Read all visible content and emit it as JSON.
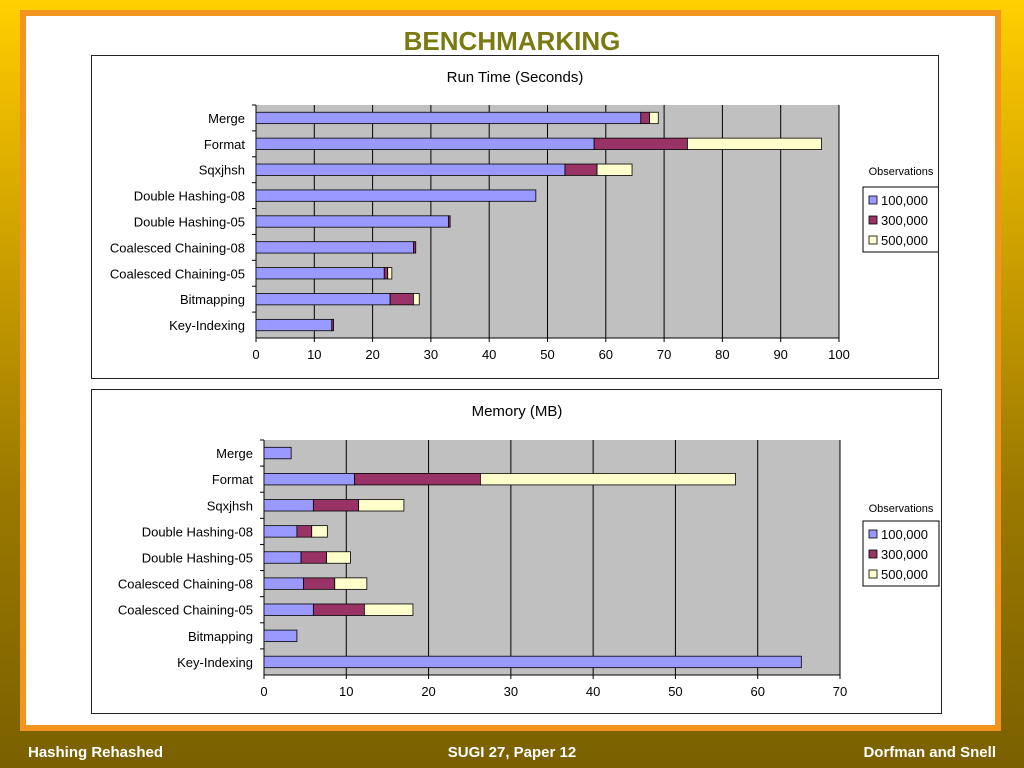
{
  "slide": {
    "title": "BENCHMARKING",
    "footer_left": "Hashing Rehashed",
    "footer_center": "SUGI 27, Paper 12",
    "footer_right": "Dorfman and Snell"
  },
  "colors": {
    "series_100k": "#9999ff",
    "series_300k": "#993366",
    "series_500k": "#ffffcc",
    "plot_bg": "#c0c0c0",
    "frame": "#f39320",
    "title": "#7a7a12"
  },
  "chart_data": [
    {
      "type": "bar",
      "orientation": "horizontal",
      "stacked": true,
      "title": "Run Time (Seconds)",
      "categories": [
        "Merge",
        "Format",
        "Sqxjhsh",
        "Double Hashing-08",
        "Double Hashing-05",
        "Coalesced Chaining-08",
        "Coalesced Chaining-05",
        "Bitmapping",
        "Key-Indexing"
      ],
      "series": [
        {
          "name": "100,000",
          "values": [
            66,
            58,
            53,
            48,
            33,
            27,
            22,
            23,
            13
          ]
        },
        {
          "name": "300,000",
          "values": [
            1.5,
            16,
            5.5,
            0,
            0.3,
            0.4,
            0.6,
            4,
            0.3
          ]
        },
        {
          "name": "500,000",
          "values": [
            1.5,
            23,
            6,
            0,
            0,
            0,
            0.7,
            1,
            0
          ]
        }
      ],
      "xlim": [
        0,
        100
      ],
      "xticks": [
        "0",
        "10",
        "20",
        "30",
        "40",
        "50",
        "60",
        "70",
        "80",
        "90",
        "100"
      ],
      "legend_title": "Observations",
      "legend_position": "right",
      "grid": true
    },
    {
      "type": "bar",
      "orientation": "horizontal",
      "stacked": true,
      "title": "Memory (MB)",
      "categories": [
        "Merge",
        "Format",
        "Sqxjhsh",
        "Double Hashing-08",
        "Double Hashing-05",
        "Coalesced Chaining-08",
        "Coalesced Chaining-05",
        "Bitmapping",
        "Key-Indexing"
      ],
      "series": [
        {
          "name": "100,000",
          "values": [
            3.3,
            11,
            6,
            4,
            4.5,
            4.8,
            6,
            4,
            65.3
          ]
        },
        {
          "name": "300,000",
          "values": [
            0,
            15.3,
            5.5,
            1.8,
            3.1,
            3.8,
            6.2,
            0,
            0
          ]
        },
        {
          "name": "500,000",
          "values": [
            0,
            31,
            5.5,
            1.9,
            2.9,
            3.9,
            5.9,
            0,
            0
          ]
        }
      ],
      "xlim": [
        0,
        70
      ],
      "xticks": [
        "0",
        "10",
        "20",
        "30",
        "40",
        "50",
        "60",
        "70"
      ],
      "legend_title": "Observations",
      "legend_position": "right",
      "grid": true
    }
  ]
}
